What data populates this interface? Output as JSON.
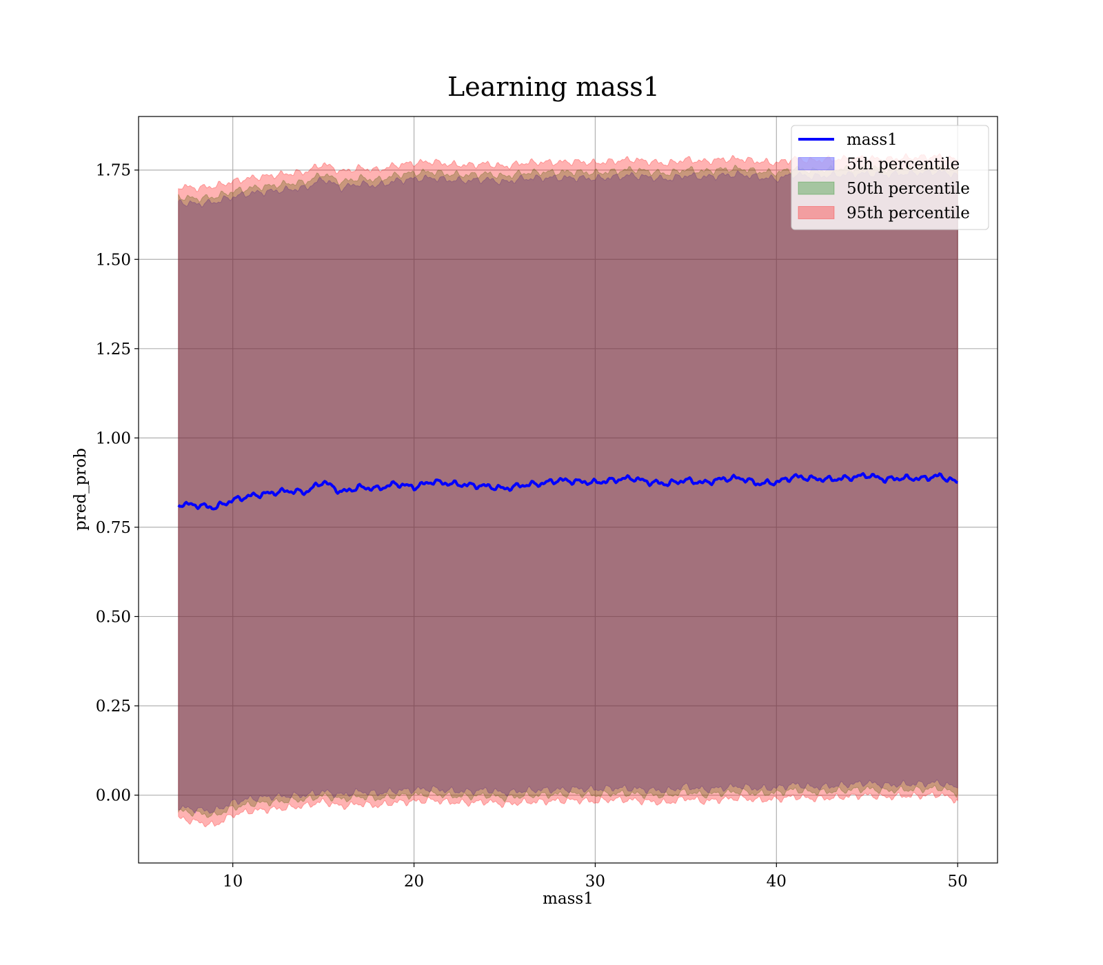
{
  "chart_data": {
    "type": "area",
    "title": "Learning mass1",
    "xlabel": "mass1",
    "ylabel": "pred_prob",
    "xlim": [
      4.8,
      52.2
    ],
    "ylim": [
      -0.19,
      1.9
    ],
    "xticks": [
      10,
      20,
      30,
      40,
      50
    ],
    "xtick_labels": [
      "10",
      "20",
      "30",
      "40",
      "50"
    ],
    "yticks": [
      0.0,
      0.25,
      0.5,
      0.75,
      1.0,
      1.25,
      1.5,
      1.75
    ],
    "ytick_labels": [
      "0.00",
      "0.25",
      "0.50",
      "0.75",
      "1.00",
      "1.25",
      "1.50",
      "1.75"
    ],
    "grid": true,
    "legend_position": "top-right",
    "x": [
      7,
      8,
      9,
      10,
      11,
      12,
      13,
      14,
      15,
      16,
      17,
      18,
      19,
      20,
      21,
      22,
      23,
      24,
      25,
      26,
      27,
      28,
      29,
      30,
      31,
      32,
      33,
      34,
      35,
      36,
      37,
      38,
      39,
      40,
      41,
      42,
      43,
      44,
      45,
      46,
      47,
      48,
      49,
      50
    ],
    "series": [
      {
        "name": "mass1",
        "kind": "line",
        "color": "#0000ff",
        "values": [
          0.815,
          0.812,
          0.805,
          0.826,
          0.838,
          0.845,
          0.852,
          0.848,
          0.878,
          0.848,
          0.862,
          0.858,
          0.872,
          0.862,
          0.878,
          0.872,
          0.868,
          0.865,
          0.858,
          0.868,
          0.872,
          0.882,
          0.878,
          0.875,
          0.882,
          0.888,
          0.876,
          0.872,
          0.882,
          0.874,
          0.885,
          0.888,
          0.872,
          0.876,
          0.892,
          0.886,
          0.884,
          0.888,
          0.896,
          0.884,
          0.888,
          0.886,
          0.894,
          0.875
        ]
      },
      {
        "name": "5th percentile",
        "kind": "band",
        "color": "#0000ff",
        "lower": [
          -0.035,
          -0.04,
          -0.045,
          -0.02,
          -0.01,
          -0.005,
          -0.002,
          0.0,
          0.01,
          0.0,
          0.01,
          0.005,
          0.012,
          0.015,
          0.018,
          0.012,
          0.01,
          0.015,
          0.006,
          0.012,
          0.015,
          0.015,
          0.018,
          0.016,
          0.02,
          0.018,
          0.015,
          0.012,
          0.025,
          0.015,
          0.02,
          0.025,
          0.018,
          0.02,
          0.03,
          0.022,
          0.025,
          0.03,
          0.035,
          0.028,
          0.03,
          0.032,
          0.035,
          0.02
        ],
        "upper": [
          1.66,
          1.655,
          1.66,
          1.675,
          1.685,
          1.69,
          1.695,
          1.7,
          1.725,
          1.7,
          1.712,
          1.706,
          1.72,
          1.725,
          1.728,
          1.722,
          1.72,
          1.724,
          1.716,
          1.726,
          1.728,
          1.728,
          1.728,
          1.726,
          1.73,
          1.735,
          1.73,
          1.724,
          1.735,
          1.73,
          1.735,
          1.738,
          1.73,
          1.725,
          1.738,
          1.732,
          1.735,
          1.738,
          1.74,
          1.736,
          1.74,
          1.742,
          1.745,
          1.735
        ]
      },
      {
        "name": "50th percentile",
        "kind": "band",
        "color": "#008000",
        "lower": [
          -0.045,
          -0.05,
          -0.058,
          -0.035,
          -0.025,
          -0.02,
          -0.016,
          -0.012,
          -0.002,
          -0.012,
          -0.004,
          -0.01,
          -0.002,
          0.0,
          0.004,
          -0.002,
          -0.004,
          0.0,
          -0.008,
          -0.002,
          0.0,
          0.002,
          0.004,
          0.0,
          0.005,
          0.004,
          0.0,
          -0.002,
          0.01,
          0.0,
          0.006,
          0.01,
          0.004,
          0.006,
          0.015,
          0.008,
          0.01,
          0.014,
          0.018,
          0.012,
          0.015,
          0.016,
          0.02,
          0.004
        ],
        "upper": [
          1.675,
          1.67,
          1.675,
          1.69,
          1.7,
          1.705,
          1.712,
          1.716,
          1.74,
          1.716,
          1.728,
          1.722,
          1.736,
          1.742,
          1.745,
          1.738,
          1.736,
          1.74,
          1.732,
          1.742,
          1.744,
          1.744,
          1.745,
          1.742,
          1.746,
          1.752,
          1.746,
          1.74,
          1.752,
          1.746,
          1.752,
          1.754,
          1.746,
          1.742,
          1.754,
          1.748,
          1.752,
          1.754,
          1.756,
          1.752,
          1.756,
          1.758,
          1.76,
          1.75
        ]
      },
      {
        "name": "95th percentile",
        "kind": "band",
        "color": "#ff0000",
        "lower": [
          -0.065,
          -0.075,
          -0.085,
          -0.055,
          -0.045,
          -0.04,
          -0.036,
          -0.03,
          -0.018,
          -0.032,
          -0.024,
          -0.03,
          -0.02,
          -0.018,
          -0.014,
          -0.02,
          -0.022,
          -0.018,
          -0.026,
          -0.02,
          -0.018,
          -0.016,
          -0.014,
          -0.018,
          -0.012,
          -0.014,
          -0.018,
          -0.022,
          -0.008,
          -0.018,
          -0.012,
          -0.008,
          -0.014,
          -0.012,
          -0.004,
          -0.01,
          -0.008,
          -0.004,
          0.0,
          -0.006,
          -0.002,
          -0.002,
          0.002,
          -0.015
        ],
        "upper": [
          1.705,
          1.7,
          1.705,
          1.718,
          1.728,
          1.734,
          1.74,
          1.745,
          1.768,
          1.745,
          1.756,
          1.75,
          1.764,
          1.77,
          1.774,
          1.766,
          1.764,
          1.768,
          1.76,
          1.77,
          1.772,
          1.772,
          1.774,
          1.77,
          1.775,
          1.78,
          1.774,
          1.768,
          1.78,
          1.774,
          1.78,
          1.782,
          1.774,
          1.77,
          1.782,
          1.776,
          1.78,
          1.782,
          1.784,
          1.78,
          1.784,
          1.786,
          1.788,
          1.778
        ]
      }
    ]
  }
}
